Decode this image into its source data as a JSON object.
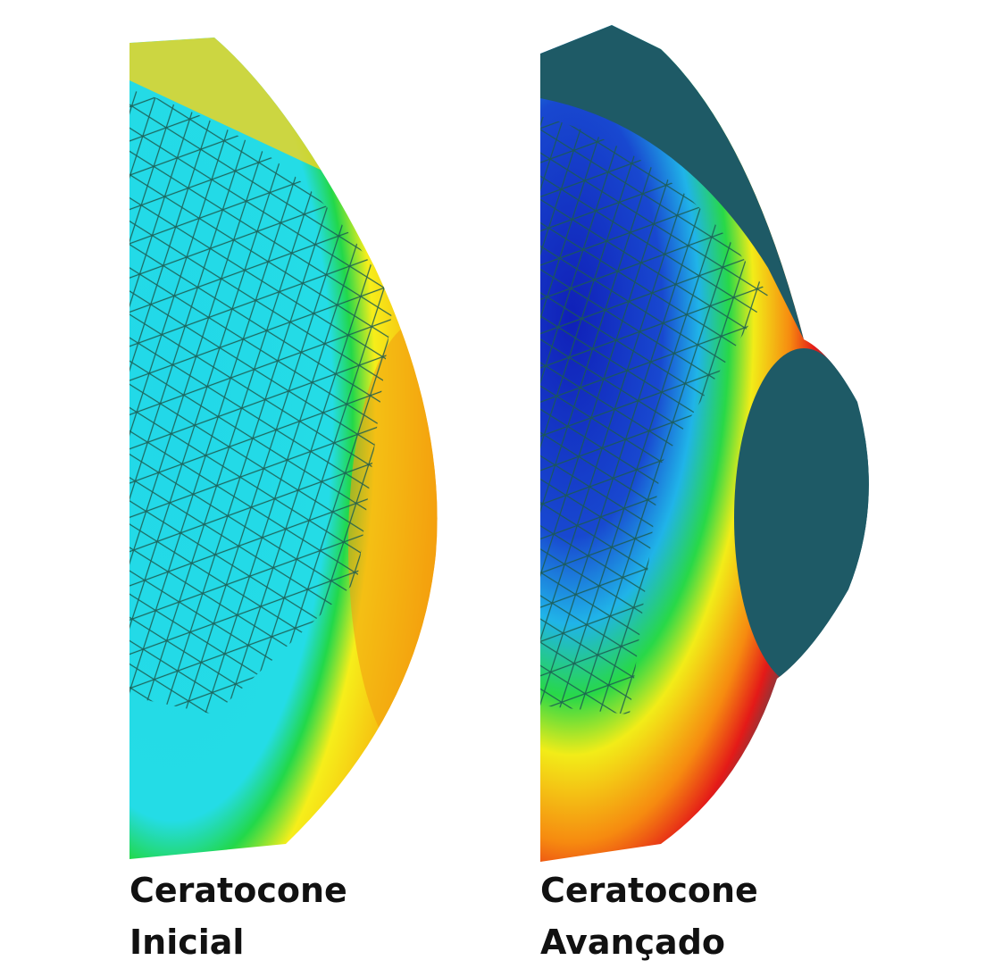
{
  "captions": [
    {
      "lines": [
        "Ceratocone",
        "Inicial"
      ]
    },
    {
      "lines": [
        "Ceratocone",
        "Avançado"
      ]
    }
  ]
}
